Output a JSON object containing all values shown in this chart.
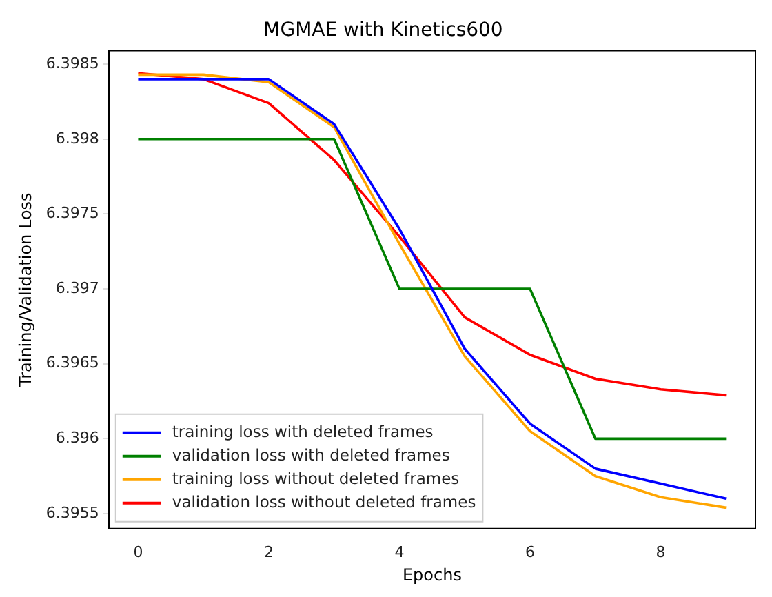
{
  "chart_data": {
    "type": "line",
    "title": "MGMAE with Kinetics600",
    "xlabel": "Epochs",
    "ylabel": "Training/Validation Loss",
    "x": [
      0,
      1,
      2,
      3,
      4,
      5,
      6,
      7,
      8,
      9
    ],
    "series": [
      {
        "name": "training loss with deleted frames",
        "color": "#0000ff",
        "values": [
          6.3984,
          6.3984,
          6.3984,
          6.3981,
          6.3974,
          6.3966,
          6.3961,
          6.3958,
          6.3957,
          6.3956
        ]
      },
      {
        "name": "validation loss with deleted frames",
        "color": "#008000",
        "values": [
          6.398,
          6.398,
          6.398,
          6.398,
          6.397,
          6.397,
          6.397,
          6.396,
          6.396,
          6.396
        ]
      },
      {
        "name": "training loss without deleted frames",
        "color": "#ffa500",
        "values": [
          6.39843,
          6.39843,
          6.39838,
          6.39808,
          6.3973,
          6.39655,
          6.39605,
          6.39575,
          6.39561,
          6.39554
        ]
      },
      {
        "name": "validation loss without deleted frames",
        "color": "#ff0000",
        "values": [
          6.39844,
          6.3984,
          6.39824,
          6.39786,
          6.39735,
          6.39681,
          6.39656,
          6.3964,
          6.39633,
          6.39629
        ]
      }
    ],
    "xlim": [
      -0.45,
      9.45
    ],
    "xticks": [
      0,
      2,
      4,
      6,
      8
    ],
    "ylim": [
      6.3954,
      6.39859
    ],
    "yticks": [
      6.3955,
      6.396,
      6.3965,
      6.397,
      6.3975,
      6.398,
      6.3985
    ],
    "grid": false,
    "legend": "bottom left",
    "marker": "none",
    "line_style": "solid"
  }
}
